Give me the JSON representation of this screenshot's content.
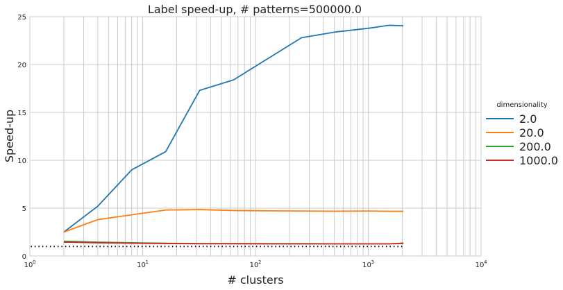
{
  "chart_data": {
    "type": "line",
    "title": "Label speed-up, # patterns=500000.0",
    "xlabel": "# clusters",
    "ylabel": "Speed-up",
    "xscale": "log",
    "xlim": [
      1,
      10000
    ],
    "ylim": [
      0,
      25
    ],
    "grid": true,
    "x_ticks": [
      {
        "value": 1,
        "base": "10",
        "exp": "0"
      },
      {
        "value": 10,
        "base": "10",
        "exp": "1"
      },
      {
        "value": 100,
        "base": "10",
        "exp": "2"
      },
      {
        "value": 1000,
        "base": "10",
        "exp": "3"
      },
      {
        "value": 10000,
        "base": "10",
        "exp": "4"
      }
    ],
    "y_ticks": [
      {
        "value": 0,
        "label": "0"
      },
      {
        "value": 5,
        "label": "5"
      },
      {
        "value": 10,
        "label": "10"
      },
      {
        "value": 15,
        "label": "15"
      },
      {
        "value": 20,
        "label": "20"
      },
      {
        "value": 25,
        "label": "25"
      }
    ],
    "legend": {
      "title": "dimensionality",
      "placement": "right"
    },
    "x": [
      2,
      4,
      8,
      16,
      32,
      64,
      128,
      256,
      512,
      1024,
      1536,
      2048
    ],
    "series": [
      {
        "name": "2.0",
        "color": "#1f77b4",
        "values": [
          2.5,
          5.2,
          9.0,
          10.9,
          17.3,
          18.4,
          20.6,
          22.8,
          23.4,
          23.8,
          24.1,
          24.05
        ]
      },
      {
        "name": "20.0",
        "color": "#ff7f0e",
        "values": [
          2.5,
          3.8,
          4.3,
          4.8,
          4.85,
          4.75,
          4.72,
          4.7,
          4.68,
          4.7,
          4.67,
          4.67
        ]
      },
      {
        "name": "200.0",
        "color": "#2ca02c",
        "values": [
          1.55,
          1.45,
          1.38,
          1.33,
          1.3,
          1.3,
          1.29,
          1.29,
          1.28,
          1.28,
          1.28,
          1.3
        ]
      },
      {
        "name": "1000.0",
        "color": "#d62728",
        "values": [
          1.45,
          1.38,
          1.33,
          1.3,
          1.28,
          1.28,
          1.27,
          1.27,
          1.27,
          1.27,
          1.27,
          1.35
        ]
      }
    ],
    "reference_line": {
      "y": 1.0,
      "x_range": [
        1.02,
        2048
      ],
      "style": "dotted",
      "color": "#000000"
    }
  }
}
